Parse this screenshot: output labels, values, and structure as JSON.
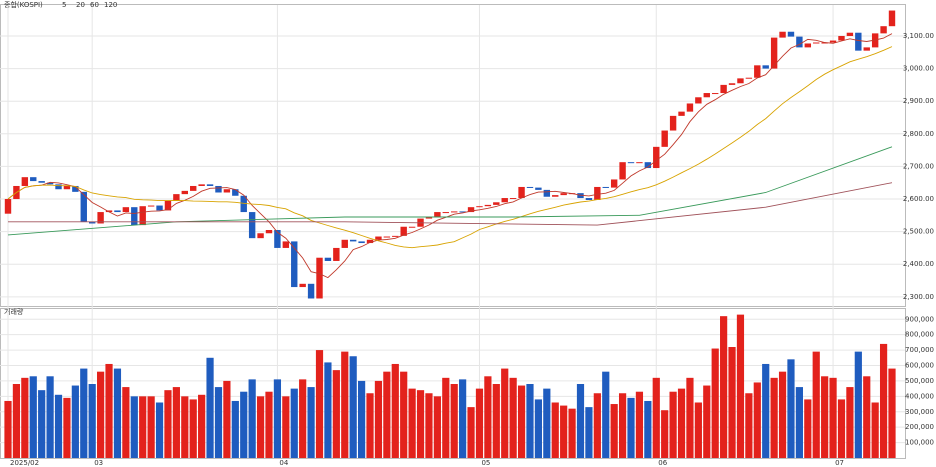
{
  "chart_data": [
    {
      "type": "candlestick",
      "title": "종합(KOSPI)",
      "up_color": "#e3221c",
      "down_color": "#1f5cbf",
      "categories": [
        "2025/02",
        null,
        null,
        null,
        null,
        null,
        null,
        null,
        null,
        null,
        "03",
        null,
        null,
        null,
        null,
        null,
        null,
        null,
        null,
        null,
        null,
        null,
        null,
        null,
        null,
        null,
        null,
        null,
        null,
        null,
        null,
        null,
        "04",
        null,
        null,
        null,
        null,
        null,
        null,
        null,
        null,
        null,
        null,
        null,
        null,
        null,
        null,
        null,
        null,
        null,
        null,
        null,
        null,
        null,
        null,
        null,
        "05",
        null,
        null,
        null,
        null,
        null,
        null,
        null,
        null,
        null,
        null,
        null,
        null,
        null,
        null,
        null,
        null,
        null,
        null,
        null,
        null,
        "06",
        null,
        null,
        null,
        null,
        null,
        null,
        null,
        null,
        null,
        null,
        null,
        null,
        null,
        null,
        null,
        null,
        null,
        null,
        null,
        null,
        "07",
        null,
        null,
        null,
        null,
        null,
        null,
        null
      ],
      "open": [
        2555,
        2600,
        2640,
        2667,
        2655,
        2650,
        2645,
        2630,
        2640,
        2622,
        2530,
        2525,
        2560,
        2565,
        2560,
        2575,
        2520,
        2578,
        2580,
        2565,
        2595,
        2615,
        2625,
        2640,
        2645,
        2640,
        2620,
        2630,
        2610,
        2560,
        2480,
        2495,
        2505,
        2450,
        2470,
        2330,
        2340,
        2295,
        2420,
        2410,
        2450,
        2475,
        2470,
        2465,
        2475,
        2485,
        2485,
        2487,
        2515,
        2515,
        2540,
        2545,
        2560,
        2560,
        2562,
        2560,
        2575,
        2578,
        2582,
        2590,
        2603,
        2603,
        2637,
        2635,
        2628,
        2607,
        2612,
        2618,
        2618,
        2603,
        2597,
        2637,
        2635,
        2660,
        2713,
        2710,
        2713,
        2695,
        2760,
        2810,
        2855,
        2868,
        2893,
        2912,
        2925,
        2925,
        2950,
        2955,
        2970,
        2972,
        3010,
        3000,
        3095,
        3113,
        3098,
        3065,
        3077,
        3080,
        3080,
        3086,
        3100,
        3110,
        3055,
        3065,
        3108,
        3130
      ],
      "close": [
        2600,
        2640,
        2667,
        2655,
        2650,
        2645,
        2630,
        2640,
        2622,
        2530,
        2525,
        2560,
        2565,
        2560,
        2575,
        2520,
        2578,
        2580,
        2565,
        2595,
        2615,
        2625,
        2640,
        2645,
        2640,
        2620,
        2630,
        2610,
        2560,
        2480,
        2495,
        2505,
        2450,
        2470,
        2330,
        2340,
        2295,
        2420,
        2410,
        2450,
        2475,
        2470,
        2465,
        2475,
        2485,
        2485,
        2487,
        2515,
        2515,
        2540,
        2545,
        2560,
        2560,
        2562,
        2560,
        2575,
        2578,
        2582,
        2590,
        2603,
        2603,
        2637,
        2635,
        2628,
        2607,
        2612,
        2618,
        2618,
        2603,
        2597,
        2637,
        2635,
        2660,
        2713,
        2710,
        2713,
        2695,
        2760,
        2810,
        2855,
        2868,
        2893,
        2912,
        2925,
        2925,
        2950,
        2955,
        2970,
        2972,
        3010,
        3000,
        3095,
        3113,
        3098,
        3065,
        3077,
        3080,
        3080,
        3086,
        3100,
        3110,
        3055,
        3065,
        3108,
        3130,
        3178
      ],
      "ma_legend": [
        "5",
        "20",
        "60",
        "120"
      ],
      "ma_colors": [
        "#c0392b",
        "#d8a300",
        "#3a9a5b",
        "#a0525a"
      ],
      "ma60": {
        "x": [
          0,
          20,
          40,
          60,
          75,
          90,
          105
        ],
        "values": [
          2490,
          2530,
          2545,
          2545,
          2550,
          2620,
          2760
        ]
      },
      "ma120": {
        "x": [
          0,
          40,
          70,
          90,
          105
        ],
        "values": [
          2530,
          2530,
          2520,
          2575,
          2650
        ]
      },
      "ylim": [
        2275,
        3195
      ],
      "yticks": [
        {
          "value": 2300,
          "label": "2,300.00"
        },
        {
          "value": 2400,
          "label": "2,400.00"
        },
        {
          "value": 2500,
          "label": "2,500.00"
        },
        {
          "value": 2600,
          "label": "2,600.00"
        },
        {
          "value": 2700,
          "label": "2,700.00"
        },
        {
          "value": 2800,
          "label": "2,800.00"
        },
        {
          "value": 2900,
          "label": "2,900.00"
        },
        {
          "value": 3000,
          "label": "3,000.00"
        },
        {
          "value": 3100,
          "label": "3,100.00"
        }
      ],
      "grid": true
    },
    {
      "type": "volume",
      "title": "거래량",
      "values": [
        370000,
        480000,
        520000,
        530000,
        440000,
        530000,
        410000,
        390000,
        470000,
        580000,
        480000,
        560000,
        610000,
        580000,
        460000,
        400000,
        400000,
        400000,
        360000,
        440000,
        460000,
        400000,
        380000,
        410000,
        650000,
        460000,
        500000,
        370000,
        430000,
        510000,
        400000,
        430000,
        510000,
        400000,
        450000,
        510000,
        460000,
        700000,
        620000,
        570000,
        690000,
        660000,
        500000,
        420000,
        500000,
        560000,
        610000,
        560000,
        450000,
        440000,
        420000,
        400000,
        520000,
        480000,
        510000,
        330000,
        450000,
        530000,
        480000,
        580000,
        520000,
        470000,
        480000,
        380000,
        450000,
        360000,
        340000,
        320000,
        480000,
        330000,
        420000,
        560000,
        350000,
        420000,
        390000,
        430000,
        370000,
        520000,
        310000,
        430000,
        450000,
        520000,
        360000,
        470000,
        710000,
        920000,
        720000,
        930000,
        420000,
        490000,
        610000,
        520000,
        560000,
        640000,
        460000,
        380000,
        690000,
        530000,
        520000,
        380000,
        460000,
        690000,
        530000,
        360000,
        740000,
        580000
      ],
      "ylim": [
        0,
        960000
      ],
      "yticks": [
        {
          "value": 100000,
          "label": "100,000"
        },
        {
          "value": 200000,
          "label": "200,000"
        },
        {
          "value": 300000,
          "label": "300,000"
        },
        {
          "value": 400000,
          "label": "400,000"
        },
        {
          "value": 500000,
          "label": "500,000"
        },
        {
          "value": 600000,
          "label": "600,000"
        },
        {
          "value": 700000,
          "label": "700,000"
        },
        {
          "value": 800000,
          "label": "800,000"
        },
        {
          "value": 900000,
          "label": "900,000"
        }
      ],
      "grid": true
    }
  ]
}
